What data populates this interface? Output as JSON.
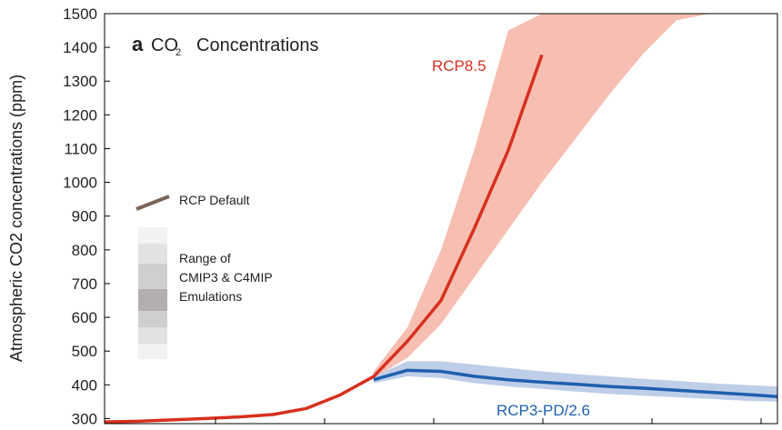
{
  "chart_data": {
    "type": "line",
    "panel_label": "a",
    "title_prefix": "CO",
    "title_sub": "2",
    "title_rest": "Concentrations",
    "y_label": "Atmospheric CO2 concentrations (ppm)",
    "ylim": [
      285,
      1500
    ],
    "yticks": [
      300,
      400,
      500,
      600,
      700,
      800,
      900,
      1000,
      1100,
      1200,
      1300,
      1400,
      1500
    ],
    "categories": [
      null,
      null,
      null,
      null,
      null,
      null,
      null,
      null,
      null,
      null,
      null,
      null,
      null,
      null,
      null,
      null,
      null,
      null,
      null,
      null,
      null
    ],
    "series": [
      {
        "name": "RCP8.5",
        "color": "#d7301f",
        "band_color": "#f4a898",
        "values": [
          290,
          292,
          296,
          300,
          305,
          312,
          330,
          370,
          425,
          529,
          650,
          866,
          1095,
          1378,
          null,
          null,
          null,
          null,
          null,
          null,
          null
        ],
        "band_low": [
          null,
          null,
          null,
          null,
          null,
          null,
          null,
          null,
          420,
          480,
          580,
          720,
          860,
          1000,
          1130,
          1260,
          1380,
          1480,
          1500,
          null,
          null
        ],
        "band_high": [
          null,
          null,
          null,
          null,
          null,
          null,
          null,
          null,
          440,
          570,
          800,
          1100,
          1450,
          1500,
          1500,
          1500,
          1500,
          1500,
          1500,
          null,
          null
        ]
      },
      {
        "name": "RCP3-PD/2.6",
        "color": "#1f5fad",
        "band_color": "#a9bde0",
        "values": [
          null,
          null,
          null,
          null,
          null,
          null,
          null,
          null,
          415,
          443,
          440,
          425,
          415,
          408,
          402,
          395,
          390,
          384,
          378,
          372,
          365
        ],
        "band_low": [
          null,
          null,
          null,
          null,
          null,
          null,
          null,
          null,
          405,
          425,
          420,
          405,
          395,
          388,
          380,
          373,
          368,
          363,
          358,
          353,
          350
        ],
        "band_high": [
          null,
          null,
          null,
          null,
          null,
          null,
          null,
          null,
          425,
          470,
          470,
          460,
          450,
          440,
          432,
          425,
          418,
          412,
          405,
          400,
          395
        ]
      }
    ],
    "legend": {
      "default_label": "RCP Default",
      "default_color": "#7a6457",
      "range_lines": [
        "Range of",
        "CMIP3 & C4MIP",
        "Emulations"
      ]
    }
  }
}
